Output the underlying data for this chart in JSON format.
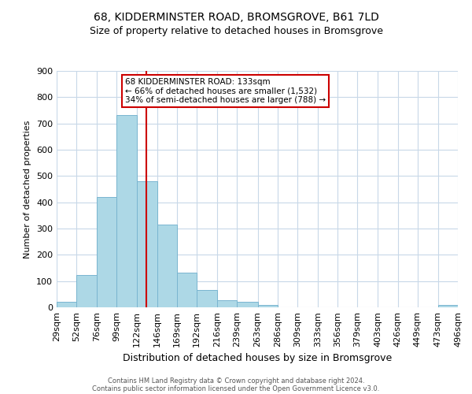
{
  "title": "68, KIDDERMINSTER ROAD, BROMSGROVE, B61 7LD",
  "subtitle": "Size of property relative to detached houses in Bromsgrove",
  "xlabel": "Distribution of detached houses by size in Bromsgrove",
  "ylabel": "Number of detached properties",
  "footer_line1": "Contains HM Land Registry data © Crown copyright and database right 2024.",
  "footer_line2": "Contains public sector information licensed under the Open Government Licence v3.0.",
  "bin_edges": [
    29,
    52,
    76,
    99,
    122,
    146,
    169,
    192,
    216,
    239,
    263,
    286,
    309,
    333,
    356,
    379,
    403,
    426,
    449,
    473,
    496
  ],
  "bin_labels": [
    "29sqm",
    "52sqm",
    "76sqm",
    "99sqm",
    "122sqm",
    "146sqm",
    "169sqm",
    "192sqm",
    "216sqm",
    "239sqm",
    "263sqm",
    "286sqm",
    "309sqm",
    "333sqm",
    "356sqm",
    "379sqm",
    "403sqm",
    "426sqm",
    "449sqm",
    "473sqm",
    "496sqm"
  ],
  "counts": [
    22,
    122,
    420,
    732,
    480,
    315,
    132,
    65,
    28,
    22,
    10,
    0,
    0,
    0,
    0,
    0,
    0,
    0,
    0,
    8,
    0
  ],
  "bar_color": "#add8e6",
  "bar_edge_color": "#7ab5d0",
  "property_line_x": 133,
  "property_line_color": "#cc0000",
  "annotation_line1": "68 KIDDERMINSTER ROAD: 133sqm",
  "annotation_line2": "← 66% of detached houses are smaller (1,532)",
  "annotation_line3": "34% of semi-detached houses are larger (788) →",
  "annotation_box_color": "#cc0000",
  "ylim": [
    0,
    900
  ],
  "yticks": [
    0,
    100,
    200,
    300,
    400,
    500,
    600,
    700,
    800,
    900
  ],
  "background_color": "#ffffff",
  "grid_color": "#c8d8e8",
  "title_fontsize": 10,
  "subtitle_fontsize": 9,
  "ylabel_fontsize": 8,
  "xlabel_fontsize": 9
}
